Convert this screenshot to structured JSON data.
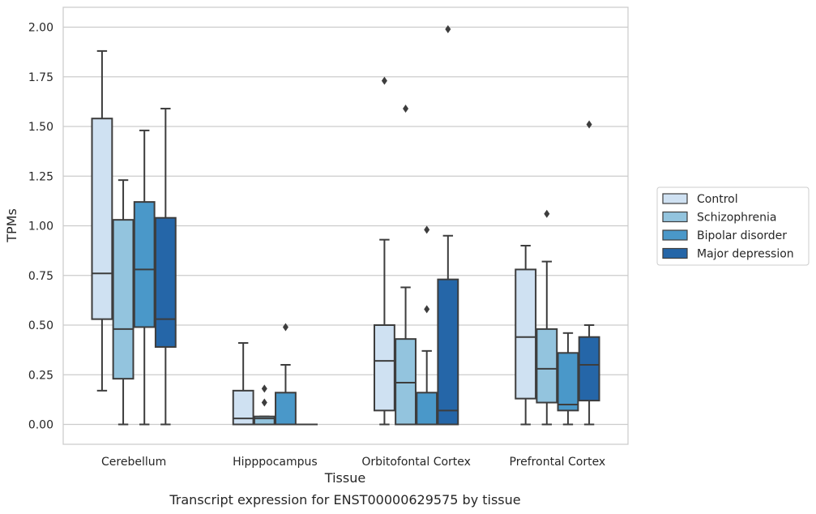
{
  "chart_data": {
    "type": "box",
    "caption": "Transcript expression for ENST00000629575 by tissue",
    "xlabel": "Tissue",
    "ylabel": "TPMs",
    "ylim": [
      -0.1,
      2.1
    ],
    "yticks": [
      "0.00",
      "0.25",
      "0.50",
      "0.75",
      "1.00",
      "1.25",
      "1.50",
      "1.75",
      "2.00"
    ],
    "grid": "horizontal",
    "legend_position": "right",
    "categories": [
      "Cerebellum",
      "Hipppocampus",
      "Orbitofontal Cortex",
      "Prefrontal Cortex"
    ],
    "series": [
      {
        "name": "Control",
        "color": "#cfe1f2",
        "boxes": [
          {
            "whislo": 0.17,
            "q1": 0.53,
            "med": 0.76,
            "q3": 1.54,
            "whishi": 1.88,
            "fliers": []
          },
          {
            "whislo": 0.0,
            "q1": 0.0,
            "med": 0.03,
            "q3": 0.17,
            "whishi": 0.41,
            "fliers": []
          },
          {
            "whislo": 0.0,
            "q1": 0.07,
            "med": 0.32,
            "q3": 0.5,
            "whishi": 0.93,
            "fliers": [
              1.73
            ]
          },
          {
            "whislo": 0.0,
            "q1": 0.13,
            "med": 0.44,
            "q3": 0.78,
            "whishi": 0.9,
            "fliers": []
          }
        ]
      },
      {
        "name": "Schizophrenia",
        "color": "#93c4de",
        "boxes": [
          {
            "whislo": 0.0,
            "q1": 0.23,
            "med": 0.48,
            "q3": 1.03,
            "whishi": 1.23,
            "fliers": []
          },
          {
            "whislo": 0.0,
            "q1": 0.0,
            "med": 0.03,
            "q3": 0.04,
            "whishi": 0.04,
            "fliers": [
              0.11,
              0.18
            ]
          },
          {
            "whislo": 0.0,
            "q1": 0.0,
            "med": 0.21,
            "q3": 0.43,
            "whishi": 0.69,
            "fliers": [
              1.59
            ]
          },
          {
            "whislo": 0.0,
            "q1": 0.11,
            "med": 0.28,
            "q3": 0.48,
            "whishi": 0.82,
            "fliers": [
              1.06
            ]
          }
        ]
      },
      {
        "name": "Bipolar disorder",
        "color": "#4a98c9",
        "boxes": [
          {
            "whislo": 0.0,
            "q1": 0.49,
            "med": 0.78,
            "q3": 1.12,
            "whishi": 1.48,
            "fliers": []
          },
          {
            "whislo": 0.0,
            "q1": 0.0,
            "med": 0.0,
            "q3": 0.16,
            "whishi": 0.3,
            "fliers": [
              0.49
            ]
          },
          {
            "whislo": 0.0,
            "q1": 0.0,
            "med": 0.0,
            "q3": 0.16,
            "whishi": 0.37,
            "fliers": [
              0.58,
              0.98
            ]
          },
          {
            "whislo": 0.0,
            "q1": 0.07,
            "med": 0.1,
            "q3": 0.36,
            "whishi": 0.46,
            "fliers": []
          }
        ]
      },
      {
        "name": "Major depression",
        "color": "#2566a8",
        "boxes": [
          {
            "whislo": 0.0,
            "q1": 0.39,
            "med": 0.53,
            "q3": 1.04,
            "whishi": 1.59,
            "fliers": []
          },
          {
            "whislo": 0.0,
            "q1": 0.0,
            "med": 0.0,
            "q3": 0.0,
            "whishi": 0.0,
            "fliers": []
          },
          {
            "whislo": 0.0,
            "q1": 0.0,
            "med": 0.07,
            "q3": 0.73,
            "whishi": 0.95,
            "fliers": [
              1.99
            ]
          },
          {
            "whislo": 0.0,
            "q1": 0.12,
            "med": 0.3,
            "q3": 0.44,
            "whishi": 0.5,
            "fliers": [
              1.51
            ]
          }
        ]
      }
    ]
  }
}
